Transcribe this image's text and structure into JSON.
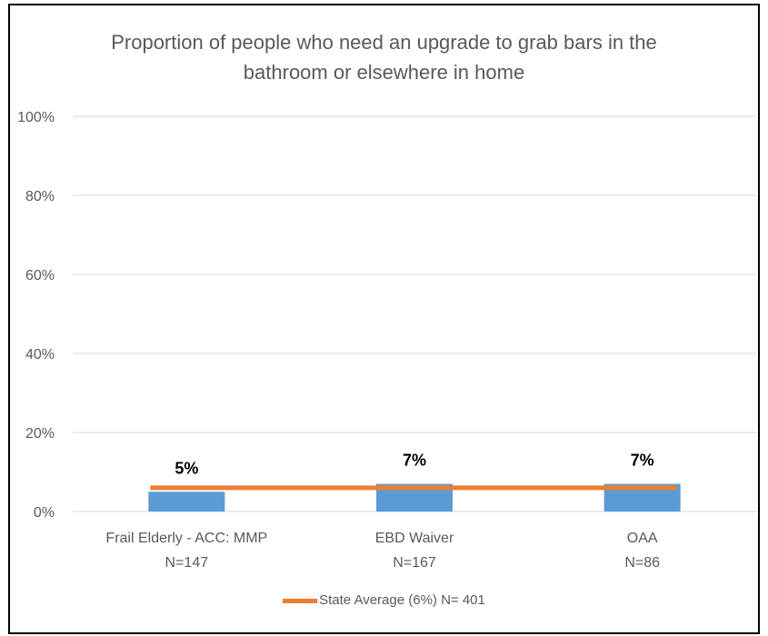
{
  "chart_data": {
    "type": "bar",
    "title_lines": [
      "Proportion of people who need an upgrade to grab bars in the",
      "bathroom or elsewhere in home"
    ],
    "categories": [
      "Frail Elderly - ACC: MMP",
      "EBD Waiver",
      "OAA"
    ],
    "category_n": [
      "N=147",
      "N=167",
      "N=86"
    ],
    "values": [
      5,
      7,
      7
    ],
    "data_labels": [
      "5%",
      "7%",
      "7%"
    ],
    "y_ticks": [
      "0%",
      "20%",
      "40%",
      "60%",
      "80%",
      "100%"
    ],
    "ylim": [
      0,
      100
    ],
    "grid": true,
    "reference_line": {
      "label": "State Average (6%) N= 401",
      "value": 6
    },
    "legend_position": "bottom",
    "colors": {
      "bar": "#5b9bd5",
      "reference_line": "#ed7d31",
      "grid": "#d9d9d9",
      "text": "#595959"
    }
  }
}
